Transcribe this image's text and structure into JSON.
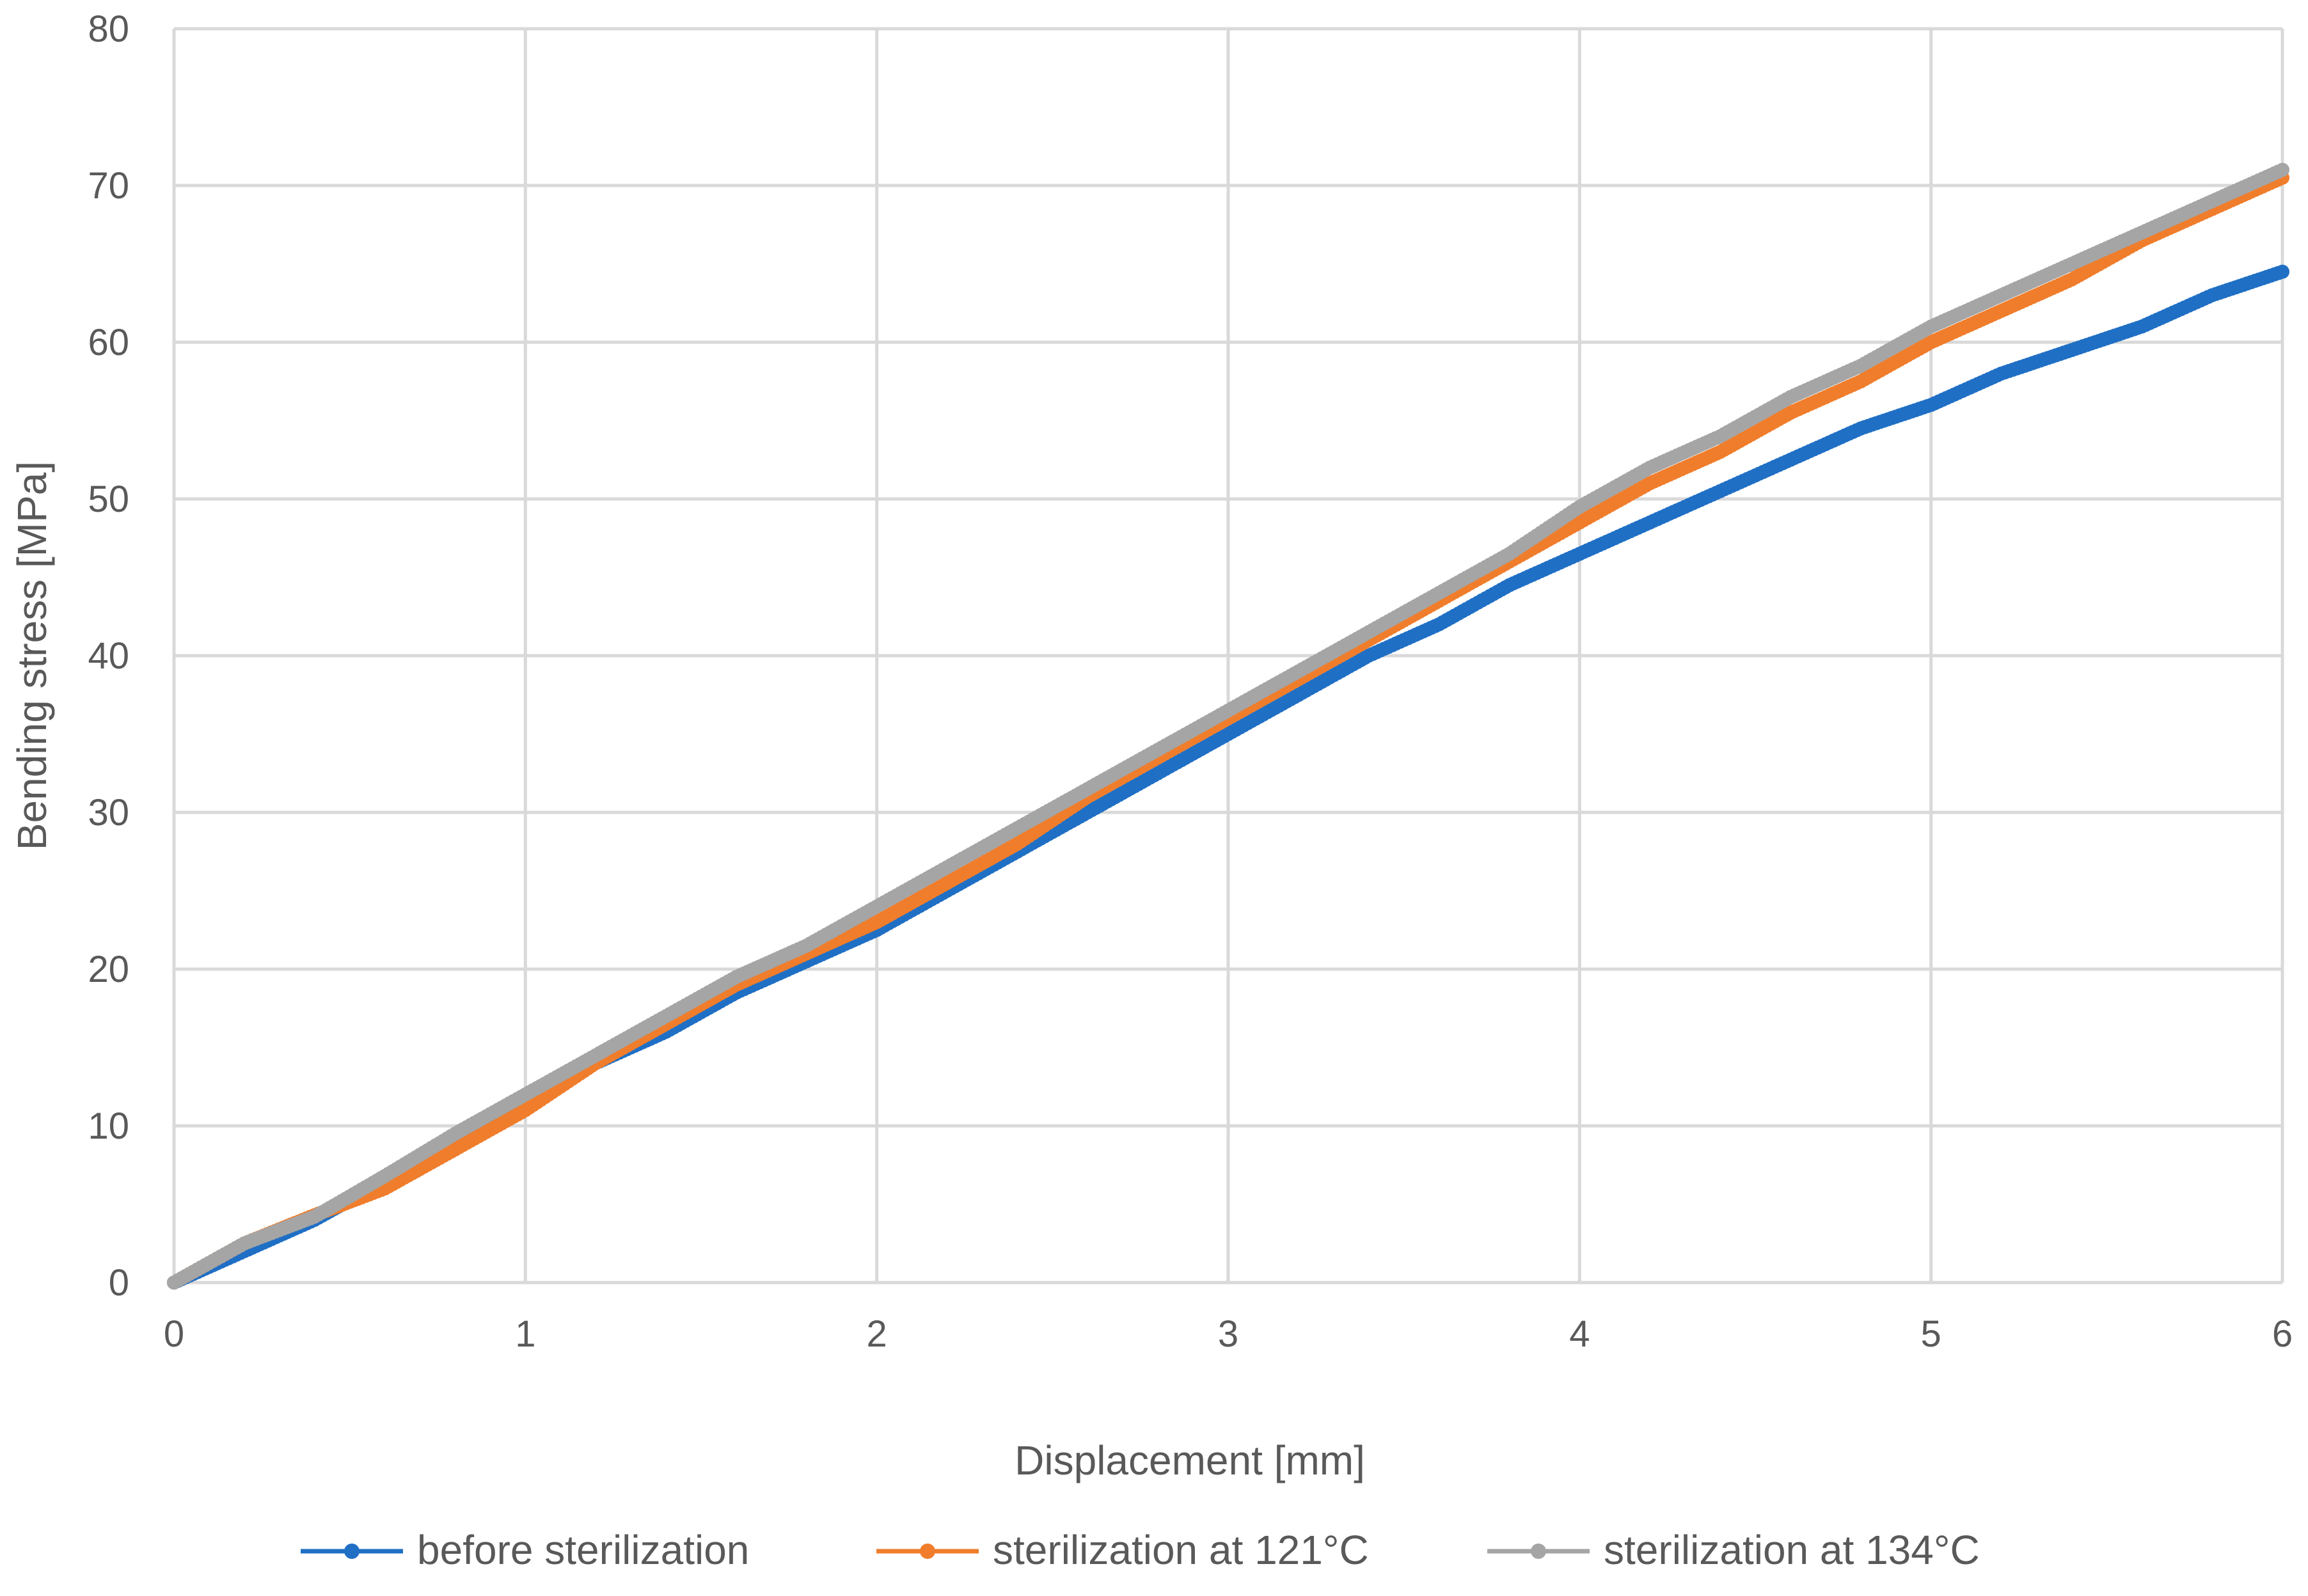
{
  "chart_data": {
    "type": "line",
    "xlabel": "Displacement [mm]",
    "ylabel": "Bending stress [MPa]",
    "xlim": [
      0,
      6
    ],
    "ylim": [
      0,
      80
    ],
    "x_ticks": [
      0,
      1,
      2,
      3,
      4,
      5,
      6
    ],
    "y_ticks": [
      0,
      10,
      20,
      30,
      40,
      50,
      60,
      70,
      80
    ],
    "grid": true,
    "legend_position": "bottom",
    "series": [
      {
        "name": "before sterilization",
        "color": "#1f6fc5",
        "points": [
          [
            0,
            0
          ],
          [
            0.2,
            2
          ],
          [
            0.4,
            4
          ],
          [
            0.6,
            6.5
          ],
          [
            0.8,
            9
          ],
          [
            1,
            11.5
          ],
          [
            1.2,
            14
          ],
          [
            1.4,
            16
          ],
          [
            1.6,
            18.5
          ],
          [
            1.8,
            20.5
          ],
          [
            2,
            22.5
          ],
          [
            2.2,
            25
          ],
          [
            2.4,
            27.5
          ],
          [
            2.6,
            30
          ],
          [
            2.8,
            32.5
          ],
          [
            3,
            35
          ],
          [
            3.2,
            37.5
          ],
          [
            3.4,
            40
          ],
          [
            3.6,
            42
          ],
          [
            3.8,
            44.5
          ],
          [
            4,
            46.5
          ],
          [
            4.2,
            48.5
          ],
          [
            4.4,
            50.5
          ],
          [
            4.6,
            52.5
          ],
          [
            4.8,
            54.5
          ],
          [
            5,
            56
          ],
          [
            5.2,
            58
          ],
          [
            5.4,
            59.5
          ],
          [
            5.6,
            61
          ],
          [
            5.8,
            63
          ],
          [
            6,
            64.5
          ]
        ]
      },
      {
        "name": "sterilization at 121°C",
        "color": "#f07d2b",
        "points": [
          [
            0,
            0
          ],
          [
            0.2,
            2.5
          ],
          [
            0.4,
            4.3
          ],
          [
            0.6,
            6
          ],
          [
            0.8,
            8.5
          ],
          [
            1,
            11
          ],
          [
            1.2,
            14
          ],
          [
            1.4,
            16.5
          ],
          [
            1.6,
            19
          ],
          [
            1.8,
            21
          ],
          [
            2,
            23
          ],
          [
            2.2,
            25.5
          ],
          [
            2.4,
            28
          ],
          [
            2.6,
            31
          ],
          [
            2.8,
            33.5
          ],
          [
            3,
            36
          ],
          [
            3.2,
            38.5
          ],
          [
            3.4,
            41
          ],
          [
            3.6,
            43.5
          ],
          [
            3.8,
            46
          ],
          [
            4,
            48.5
          ],
          [
            4.2,
            51
          ],
          [
            4.4,
            53
          ],
          [
            4.6,
            55.5
          ],
          [
            4.8,
            57.5
          ],
          [
            5,
            60
          ],
          [
            5.2,
            62
          ],
          [
            5.4,
            64
          ],
          [
            5.6,
            66.5
          ],
          [
            5.8,
            68.5
          ],
          [
            6,
            70.5
          ]
        ]
      },
      {
        "name": "sterilization at 134°C",
        "color": "#a5a5a5",
        "points": [
          [
            0,
            0
          ],
          [
            0.2,
            2.5
          ],
          [
            0.4,
            4.2
          ],
          [
            0.6,
            6.8
          ],
          [
            0.8,
            9.5
          ],
          [
            1,
            12
          ],
          [
            1.2,
            14.5
          ],
          [
            1.4,
            17
          ],
          [
            1.6,
            19.5
          ],
          [
            1.8,
            21.5
          ],
          [
            2,
            24
          ],
          [
            2.2,
            26.5
          ],
          [
            2.4,
            29
          ],
          [
            2.6,
            31.5
          ],
          [
            2.8,
            34
          ],
          [
            3,
            36.5
          ],
          [
            3.2,
            39
          ],
          [
            3.4,
            41.5
          ],
          [
            3.6,
            44
          ],
          [
            3.8,
            46.5
          ],
          [
            4,
            49.5
          ],
          [
            4.2,
            52
          ],
          [
            4.4,
            54
          ],
          [
            4.6,
            56.5
          ],
          [
            4.8,
            58.5
          ],
          [
            5,
            61
          ],
          [
            5.2,
            63
          ],
          [
            5.4,
            65
          ],
          [
            5.6,
            67
          ],
          [
            5.8,
            69
          ],
          [
            6,
            71
          ]
        ]
      }
    ]
  }
}
